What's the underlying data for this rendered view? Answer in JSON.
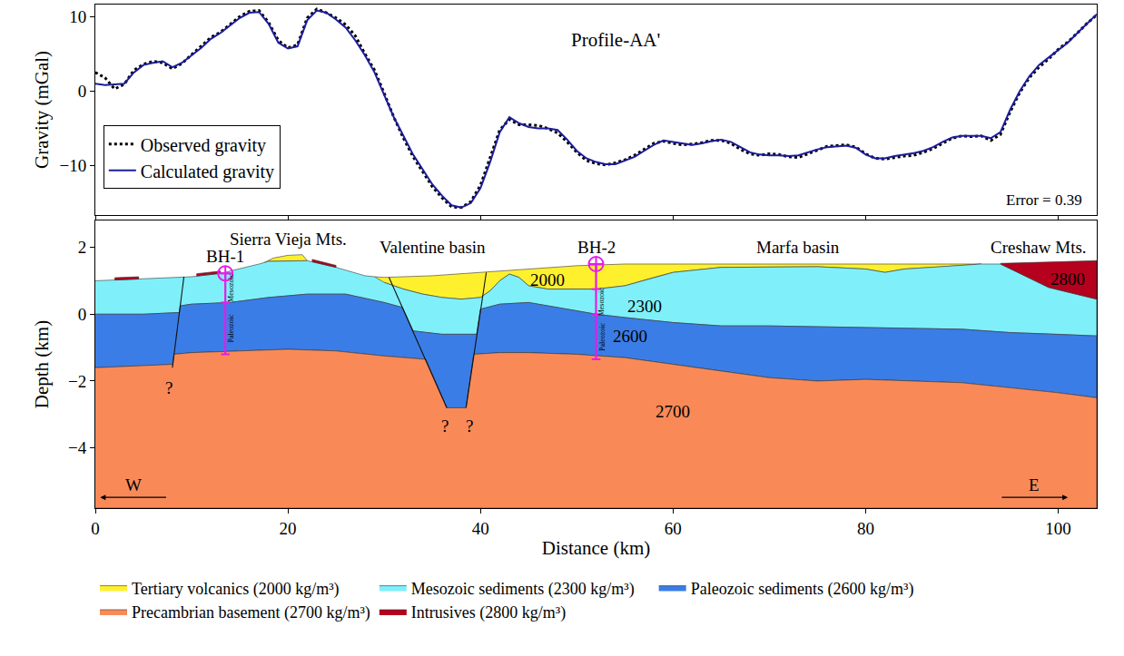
{
  "chart_data": [
    {
      "type": "line",
      "y_label": "Gravity (mGal)",
      "xlim": [
        0,
        104
      ],
      "xticks": [
        0,
        20,
        40,
        60,
        80,
        100
      ],
      "ylim": [
        -16.6,
        11.6
      ],
      "yticks": [
        -10,
        0,
        10
      ],
      "tick_labels": "y",
      "grid": false,
      "legend": "upper left",
      "annotations": [
        {
          "text": "Profile-AA'",
          "x": 54,
          "y": 6.8
        },
        {
          "text": "Error = 0.39",
          "x": 98.5,
          "y": -14.6
        }
      ],
      "x": [
        0,
        1,
        2,
        3,
        4,
        5,
        6,
        7,
        8,
        9,
        10,
        11,
        12,
        13,
        14,
        15,
        16,
        17,
        18,
        19,
        20,
        21,
        22,
        23,
        24,
        25,
        26,
        27,
        28,
        29,
        30,
        31,
        32,
        33,
        34,
        35,
        36,
        37,
        38,
        39,
        40,
        41,
        42,
        43,
        44,
        45,
        46,
        47,
        48,
        49,
        50,
        51,
        52,
        53,
        54,
        55,
        56,
        57,
        58,
        59,
        60,
        61,
        62,
        63,
        64,
        65,
        66,
        67,
        68,
        69,
        70,
        71,
        72,
        73,
        74,
        75,
        76,
        77,
        78,
        79,
        80,
        81,
        82,
        83,
        84,
        85,
        86,
        87,
        88,
        89,
        90,
        91,
        92,
        93,
        94,
        95,
        96,
        97,
        98,
        99,
        100,
        101,
        102,
        103,
        104
      ],
      "series": [
        {
          "name": "Observed gravity",
          "color": "#000000",
          "line_style": "dotted",
          "values": [
            2.5,
            1.8,
            0.3,
            0.9,
            2.8,
            3.6,
            4.0,
            3.8,
            3.0,
            3.7,
            4.9,
            6.0,
            7.2,
            7.9,
            9.0,
            10.0,
            10.7,
            10.8,
            9.2,
            6.8,
            5.8,
            6.2,
            9.8,
            11.0,
            10.5,
            9.8,
            8.9,
            7.4,
            5.0,
            2.8,
            -0.3,
            -3.5,
            -6.3,
            -8.8,
            -10.8,
            -12.8,
            -14.3,
            -15.5,
            -15.6,
            -14.8,
            -12.6,
            -9.0,
            -5.2,
            -3.8,
            -4.5,
            -4.5,
            -4.6,
            -5.0,
            -5.6,
            -6.8,
            -8.2,
            -9.3,
            -9.7,
            -9.9,
            -9.6,
            -9.2,
            -8.6,
            -7.8,
            -7.0,
            -6.7,
            -7.0,
            -7.2,
            -7.1,
            -6.9,
            -6.6,
            -6.6,
            -7.0,
            -7.8,
            -8.4,
            -8.6,
            -8.4,
            -8.5,
            -8.8,
            -8.9,
            -8.4,
            -7.9,
            -7.4,
            -7.3,
            -7.2,
            -7.5,
            -8.4,
            -9.0,
            -9.1,
            -8.9,
            -8.7,
            -8.6,
            -8.2,
            -7.7,
            -7.0,
            -6.3,
            -6.0,
            -6.1,
            -6.0,
            -6.6,
            -5.8,
            -2.8,
            -0.2,
            1.8,
            3.2,
            4.3,
            5.6,
            6.6,
            7.8,
            9.1,
            10.2
          ]
        },
        {
          "name": "Calculated gravity",
          "color": "#1c1c9c",
          "line_style": "solid",
          "values": [
            1.0,
            0.8,
            0.9,
            1.0,
            2.5,
            3.5,
            3.8,
            4.0,
            3.2,
            3.8,
            4.8,
            5.8,
            7.0,
            7.8,
            8.8,
            9.8,
            10.5,
            10.6,
            9.0,
            6.5,
            5.7,
            6.0,
            9.5,
            10.8,
            10.5,
            9.6,
            8.5,
            6.8,
            4.8,
            2.5,
            -0.5,
            -3.5,
            -6.0,
            -8.5,
            -10.5,
            -12.5,
            -14.0,
            -15.3,
            -15.6,
            -15.0,
            -13.0,
            -9.5,
            -5.5,
            -3.5,
            -4.3,
            -4.8,
            -5.0,
            -5.0,
            -5.2,
            -6.5,
            -8.0,
            -9.0,
            -9.5,
            -9.8,
            -9.8,
            -9.3,
            -8.8,
            -8.0,
            -7.2,
            -6.6,
            -6.8,
            -7.0,
            -7.2,
            -7.0,
            -6.7,
            -6.5,
            -6.8,
            -7.5,
            -8.2,
            -8.5,
            -8.6,
            -8.6,
            -8.7,
            -8.6,
            -8.2,
            -7.8,
            -7.5,
            -7.4,
            -7.3,
            -7.6,
            -8.5,
            -9.0,
            -9.0,
            -8.7,
            -8.5,
            -8.3,
            -8.0,
            -7.5,
            -6.8,
            -6.2,
            -6.0,
            -6.0,
            -6.0,
            -6.3,
            -5.5,
            -2.5,
            0.0,
            2.0,
            3.5,
            4.5,
            5.5,
            6.5,
            7.8,
            9.0,
            10.3
          ]
        }
      ]
    },
    {
      "type": "cross_section",
      "x_label": "Distance (km)",
      "y_label": "Depth (km)",
      "xlim": [
        0,
        104
      ],
      "xticks": [
        0,
        20,
        40,
        60,
        80,
        100
      ],
      "ylim": [
        -5.8,
        2.8
      ],
      "yticks": [
        -4,
        -2,
        0,
        2
      ],
      "grid": false,
      "legend": "bottom",
      "layers": [
        {
          "name": "Tertiary volcanics (2000 kg/m³)",
          "color": "#fff02e",
          "x": [
            29,
            30,
            35,
            40,
            45,
            50,
            55,
            60,
            70,
            80,
            90,
            92,
            88,
            84,
            82,
            80,
            75,
            70,
            65,
            60,
            58,
            55,
            52,
            50,
            47,
            45,
            44,
            43,
            42,
            41,
            40,
            38,
            36,
            34,
            32,
            30,
            null,
            17.5,
            18.5,
            20,
            21.5,
            22,
            20,
            18
          ],
          "y": [
            1.12,
            1.1,
            1.15,
            1.25,
            1.35,
            1.45,
            1.5,
            1.5,
            1.5,
            1.5,
            1.5,
            1.5,
            1.42,
            1.35,
            1.25,
            1.35,
            1.42,
            1.42,
            1.4,
            1.25,
            1.1,
            0.85,
            0.75,
            0.75,
            0.75,
            0.85,
            1.1,
            1.2,
            1.0,
            0.7,
            0.5,
            0.45,
            0.5,
            0.6,
            0.75,
            0.95,
            null,
            1.54,
            1.68,
            1.76,
            1.78,
            1.6,
            1.6,
            1.58
          ]
        },
        {
          "name": "Mesozoic sediments (2300 kg/m³)",
          "color": "#7ff0fa",
          "x": [
            0,
            5,
            10,
            13,
            15,
            17,
            18,
            20,
            22,
            25,
            28,
            29,
            30,
            32,
            34,
            36,
            38,
            40,
            41,
            42,
            43,
            44,
            45,
            47,
            50,
            52,
            55,
            58,
            60,
            65,
            70,
            75,
            80,
            82,
            84,
            88,
            92,
            94,
            99,
            104,
            104,
            100,
            95,
            90,
            80,
            70,
            65,
            60,
            55,
            52,
            48,
            45,
            42,
            40.0,
            39.6,
            36,
            33.0,
            31.9,
            30,
            26,
            22,
            18,
            14,
            10,
            8.82,
            8.73,
            5,
            0
          ],
          "y": [
            1.0,
            1.05,
            1.12,
            1.22,
            1.35,
            1.5,
            1.58,
            1.6,
            1.6,
            1.4,
            1.15,
            1.12,
            0.95,
            0.75,
            0.6,
            0.5,
            0.45,
            0.5,
            0.7,
            1.0,
            1.2,
            1.1,
            0.85,
            0.75,
            0.75,
            0.75,
            0.85,
            1.1,
            1.25,
            1.4,
            1.42,
            1.42,
            1.35,
            1.25,
            1.35,
            1.42,
            1.5,
            1.5,
            0.8,
            0.45,
            -0.65,
            -0.6,
            -0.55,
            -0.45,
            -0.4,
            -0.35,
            -0.35,
            -0.25,
            -0.1,
            0,
            0.2,
            0.35,
            0.3,
            0.15,
            -0.6,
            -0.6,
            -0.5,
            0.2,
            0.35,
            0.6,
            0.6,
            0.5,
            0.35,
            0.3,
            0.25,
            0.05,
            0,
            0
          ]
        },
        {
          "name": "Paleozoic sediments (2600 kg/m³)",
          "color": "#3b7de6",
          "x": [
            0,
            5,
            8.73,
            8.82,
            10,
            14,
            18,
            22,
            26,
            30,
            31.9,
            33.0,
            36,
            39.6,
            40.0,
            42,
            45,
            48,
            52,
            55,
            60,
            65,
            70,
            80,
            90,
            95,
            100,
            104,
            104,
            100,
            95,
            90,
            85,
            80,
            75,
            70,
            65,
            60,
            55,
            50,
            45,
            42,
            39.3,
            38.5,
            36.5,
            34.3,
            30,
            25,
            20,
            15,
            10,
            8.18,
            8.04,
            5,
            0
          ],
          "y": [
            0,
            0,
            0.05,
            0.25,
            0.3,
            0.35,
            0.5,
            0.6,
            0.6,
            0.35,
            0.2,
            -0.5,
            -0.6,
            -0.6,
            0.15,
            0.3,
            0.35,
            0.2,
            0,
            -0.1,
            -0.25,
            -0.35,
            -0.35,
            -0.4,
            -0.45,
            -0.55,
            -0.6,
            -0.65,
            -2.5,
            -2.35,
            -2.2,
            -2.05,
            -2.0,
            -1.95,
            -2.0,
            -1.9,
            -1.7,
            -1.5,
            -1.3,
            -1.2,
            -1.15,
            -1.15,
            -1.2,
            -2.8,
            -2.8,
            -1.35,
            -1.25,
            -1.1,
            -1.05,
            -1.1,
            -1.15,
            -1.2,
            -1.5,
            -1.55,
            -1.6
          ]
        },
        {
          "name": "Precambrian basement (2700 kg/m³)",
          "color": "#f98a58",
          "x": [
            0,
            5,
            8.04,
            8.18,
            10,
            15,
            20,
            25,
            30,
            34.3,
            36.5,
            38.5,
            39.3,
            42,
            45,
            50,
            55,
            60,
            65,
            70,
            75,
            80,
            85,
            90,
            95,
            100,
            104,
            104,
            0
          ],
          "y": [
            -1.6,
            -1.55,
            -1.5,
            -1.2,
            -1.15,
            -1.1,
            -1.05,
            -1.1,
            -1.25,
            -1.35,
            -2.8,
            -2.8,
            -1.2,
            -1.15,
            -1.15,
            -1.2,
            -1.3,
            -1.5,
            -1.7,
            -1.9,
            -2.0,
            -1.95,
            -2.0,
            -2.05,
            -2.2,
            -2.35,
            -2.5,
            -5.8,
            -5.8
          ]
        },
        {
          "name": "Intrusives (2800 kg/m³)",
          "color": "#b5001e",
          "x": [
            2,
            4.5,
            4.5,
            2,
            null,
            10.5,
            13,
            13,
            10.5,
            null,
            22.5,
            25,
            25,
            22.5,
            null,
            94,
            104,
            104,
            99,
            94
          ],
          "y": [
            1.02,
            1.05,
            1.12,
            1.09,
            null,
            1.14,
            1.22,
            1.29,
            1.21,
            null,
            1.57,
            1.4,
            1.46,
            1.64,
            null,
            1.52,
            1.6,
            0.45,
            0.8,
            1.5
          ]
        }
      ],
      "faults": [
        {
          "x": [
            9.2,
            8
          ],
          "y": [
            1.12,
            -1.6
          ]
        },
        {
          "x": [
            30.5,
            36.5
          ],
          "y": [
            1.1,
            -2.8
          ]
        },
        {
          "x": [
            40.6,
            38.5
          ],
          "y": [
            1.25,
            -2.8
          ]
        }
      ],
      "boreholes": [
        {
          "name": "BH-1",
          "x": 13.5,
          "top": 1.22,
          "color": "#e81ce8",
          "intervals": [
            {
              "label": "Mesozoic",
              "top": 1.22,
              "bottom": 0.35
            },
            {
              "label": "Paleozoic",
              "top": 0.35,
              "bottom": -1.2
            }
          ]
        },
        {
          "name": "BH-2",
          "x": 52,
          "top": 1.5,
          "color": "#e81ce8",
          "intervals": [
            {
              "label": "Mesozoic",
              "top": 0.75,
              "bottom": 0.0
            },
            {
              "label": "Paleozoic",
              "top": 0.0,
              "bottom": -1.35
            }
          ]
        }
      ],
      "annotations": [
        {
          "text": "Sierra Vieja Mts.",
          "x": 20,
          "y": 2.25
        },
        {
          "text": "Valentine basin",
          "x": 35,
          "y": 2.0
        },
        {
          "text": "Marfa basin",
          "x": 73,
          "y": 2.0
        },
        {
          "text": "Creshaw Mts.",
          "x": 98,
          "y": 2.0
        },
        {
          "text": "2000",
          "x": 47,
          "y": 1.02
        },
        {
          "text": "2300",
          "x": 57,
          "y": 0.25
        },
        {
          "text": "2600",
          "x": 55.5,
          "y": -0.65
        },
        {
          "text": "2700",
          "x": 60,
          "y": -2.9
        },
        {
          "text": "2800",
          "x": 101,
          "y": 1.05
        },
        {
          "text": "?",
          "x": 7.6,
          "y": -2.2
        },
        {
          "text": "?",
          "x": 36.3,
          "y": -3.35
        },
        {
          "text": "?",
          "x": 38.8,
          "y": -3.35
        }
      ],
      "compass": [
        {
          "text": "W",
          "x": 4,
          "y": -5.1
        },
        {
          "text": "E",
          "x": 97.5,
          "y": -5.1
        }
      ]
    }
  ]
}
